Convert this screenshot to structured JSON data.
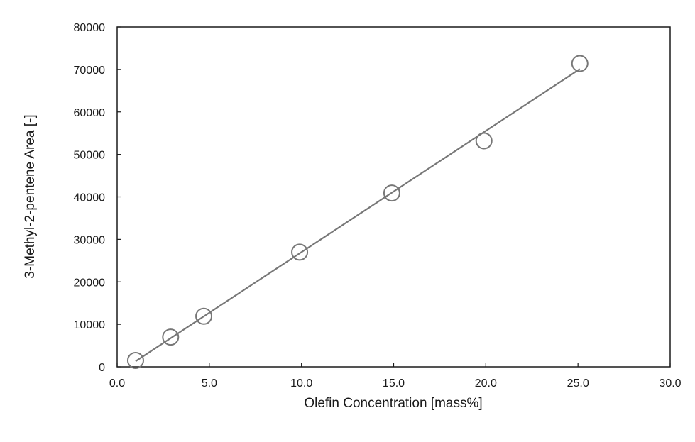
{
  "chart_data": {
    "type": "scatter",
    "title": "",
    "xlabel": "Olefin Concentration [mass%]",
    "ylabel": "3-Methyl-2-pentene Area [-]",
    "xlim": [
      0,
      30
    ],
    "ylim": [
      0,
      80000
    ],
    "x_ticks": [
      "0.0",
      "5.0",
      "10.0",
      "15.0",
      "20.0",
      "25.0",
      "30.0"
    ],
    "y_ticks": [
      "0",
      "10000",
      "20000",
      "30000",
      "40000",
      "50000",
      "60000",
      "70000",
      "80000"
    ],
    "grid": false,
    "legend": "none",
    "series": [
      {
        "marker": "open-circle",
        "color": "#777777",
        "points": [
          {
            "x": 1.0,
            "y": 1500
          },
          {
            "x": 2.9,
            "y": 7000
          },
          {
            "x": 4.7,
            "y": 11900
          },
          {
            "x": 9.9,
            "y": 27000
          },
          {
            "x": 14.9,
            "y": 40900
          },
          {
            "x": 19.9,
            "y": 53200
          },
          {
            "x": 25.1,
            "y": 71400
          }
        ]
      }
    ],
    "fit_line": {
      "color": "#777777",
      "x": [
        1.0,
        25.1
      ],
      "y": [
        1300,
        70100
      ]
    }
  }
}
